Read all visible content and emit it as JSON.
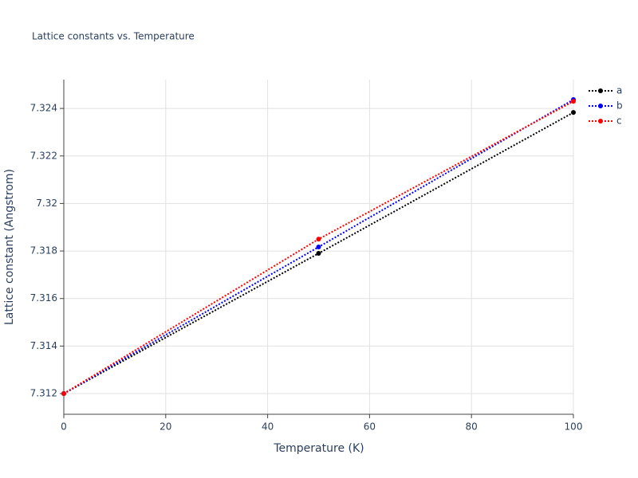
{
  "chart_data": {
    "type": "line",
    "title": "Lattice constants vs. Temperature",
    "xlabel": "Temperature (K)",
    "ylabel": "Lattice constant (Angstrom)",
    "x": [
      0,
      50,
      100
    ],
    "series": [
      {
        "name": "a",
        "color": "#000000",
        "values": [
          7.312,
          7.3179,
          7.32383
        ]
      },
      {
        "name": "b",
        "color": "#0000ff",
        "values": [
          7.312,
          7.31817,
          7.32437
        ]
      },
      {
        "name": "c",
        "color": "#ff0000",
        "values": [
          7.312,
          7.3185,
          7.3243
        ]
      }
    ],
    "xlim": [
      0,
      100
    ],
    "xticks": [
      0,
      20,
      40,
      60,
      80,
      100
    ],
    "ylim": [
      7.31113,
      7.32521
    ],
    "yticks": [
      7.312,
      7.314,
      7.316,
      7.318,
      7.32,
      7.322,
      7.324
    ],
    "grid": true,
    "legend": "top-right"
  }
}
